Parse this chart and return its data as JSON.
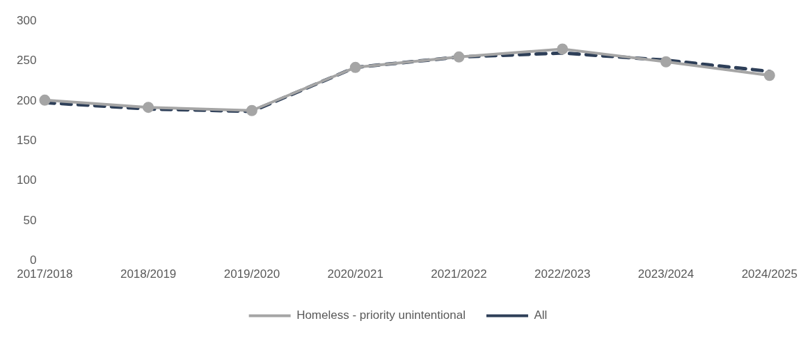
{
  "chart_data": {
    "type": "line",
    "categories": [
      "2017/2018",
      "2018/2019",
      "2019/2020",
      "2020/2021",
      "2021/2022",
      "2022/2023",
      "2023/2024",
      "2024/2025"
    ],
    "series": [
      {
        "name": "Homeless - priority unintentional",
        "color": "#a5a5a5",
        "marker": "circle",
        "line_style": "solid",
        "values": [
          201,
          192,
          188,
          242,
          255,
          265,
          249,
          232
        ]
      },
      {
        "name": "All",
        "color": "#2e3f58",
        "marker": "none",
        "line_style": "dashed",
        "values": [
          198,
          190,
          187,
          242,
          255,
          260,
          251,
          237
        ]
      }
    ],
    "ylim": [
      0,
      300
    ],
    "yticks": [
      0,
      50,
      100,
      150,
      200,
      250,
      300
    ],
    "grid": false,
    "legend": "bottom"
  }
}
